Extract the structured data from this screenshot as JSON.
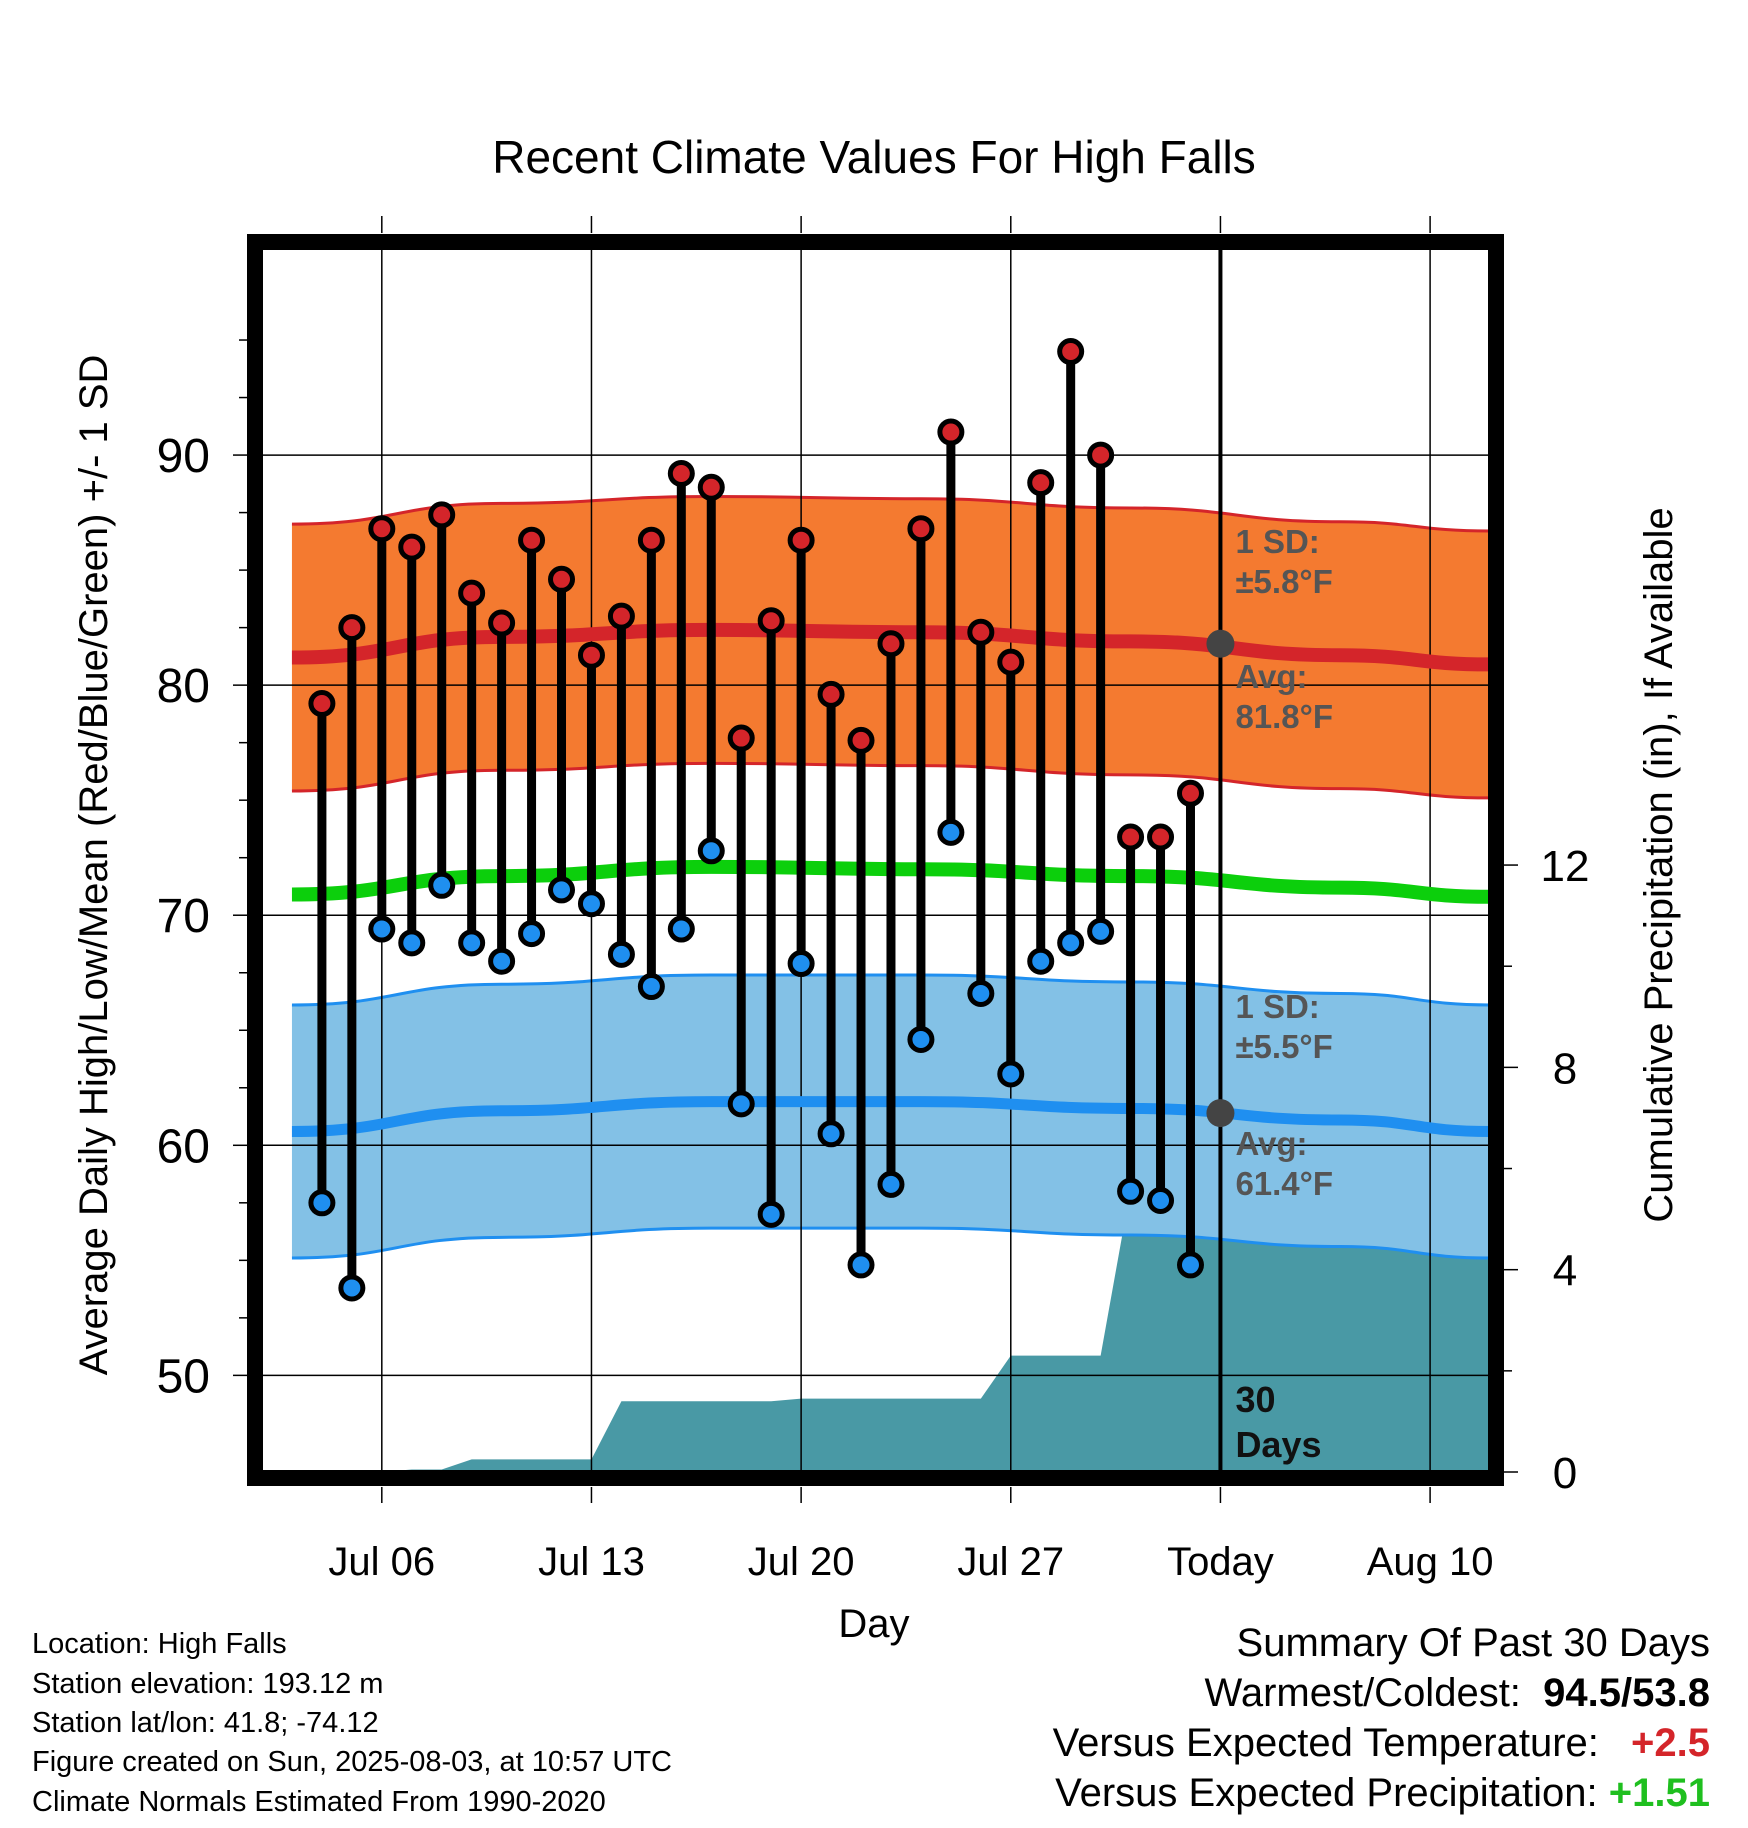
{
  "chart_data": {
    "type": "line",
    "title": "Recent Climate Values For High Falls",
    "xlabel": "Day",
    "ylabel": "Average Daily High/Low/Mean (Red/Blue/Green) +/- 1 SD",
    "y2label": "Cumulative Precipitation (in), If Available",
    "ylim": [
      45.8,
      99
    ],
    "y2lim": [
      0,
      24.2
    ],
    "yticks": [
      50,
      60,
      70,
      80,
      90
    ],
    "y2ticks": [
      0,
      4,
      8,
      12
    ],
    "x_range": [
      "Jul 02",
      "Aug 12"
    ],
    "x_ticks": [
      {
        "date": "2025-07-06",
        "label": "Jul 06"
      },
      {
        "date": "2025-07-13",
        "label": "Jul 13"
      },
      {
        "date": "2025-07-20",
        "label": "Jul 20"
      },
      {
        "date": "2025-07-27",
        "label": "Jul 27"
      },
      {
        "date": "2025-08-03",
        "label": "Today"
      },
      {
        "date": "2025-08-10",
        "label": "Aug 10"
      }
    ],
    "grid": true,
    "today_marker": {
      "date": "2025-08-03",
      "label_line1": "30",
      "label_line2": "Days"
    },
    "days": [
      "2025-07-04",
      "2025-07-05",
      "2025-07-06",
      "2025-07-07",
      "2025-07-08",
      "2025-07-09",
      "2025-07-10",
      "2025-07-11",
      "2025-07-12",
      "2025-07-13",
      "2025-07-14",
      "2025-07-15",
      "2025-07-16",
      "2025-07-17",
      "2025-07-18",
      "2025-07-19",
      "2025-07-20",
      "2025-07-21",
      "2025-07-22",
      "2025-07-23",
      "2025-07-24",
      "2025-07-25",
      "2025-07-26",
      "2025-07-27",
      "2025-07-28",
      "2025-07-29",
      "2025-07-30",
      "2025-07-31",
      "2025-08-01",
      "2025-08-02"
    ],
    "daily_high": [
      79.2,
      82.5,
      86.8,
      86.0,
      87.4,
      84.0,
      82.7,
      86.3,
      84.6,
      81.3,
      83.0,
      86.3,
      89.2,
      88.6,
      77.7,
      82.8,
      86.3,
      79.6,
      77.6,
      81.8,
      86.8,
      91.0,
      82.3,
      81.0,
      88.8,
      94.5,
      90.0,
      73.4,
      73.4,
      75.3
    ],
    "daily_low": [
      57.5,
      53.8,
      69.4,
      68.8,
      71.3,
      68.8,
      68.0,
      69.2,
      71.1,
      70.5,
      68.3,
      66.9,
      69.4,
      72.8,
      61.8,
      57.0,
      67.9,
      60.5,
      54.8,
      58.3,
      64.6,
      73.6,
      66.6,
      63.1,
      68.0,
      68.8,
      69.3,
      58.0,
      57.6,
      54.8
    ],
    "normal_high": {
      "dates": [
        "2025-07-03",
        "2025-07-10",
        "2025-07-17",
        "2025-07-24",
        "2025-07-31",
        "2025-08-07",
        "2025-08-12"
      ],
      "avg": [
        81.2,
        82.1,
        82.4,
        82.3,
        81.9,
        81.3,
        80.9
      ],
      "sd": 5.8,
      "avg_label": "Avg:",
      "avg_value": "81.8°F",
      "sd_label": "1 SD:",
      "sd_value": "±5.8°F"
    },
    "normal_low": {
      "dates": [
        "2025-07-03",
        "2025-07-10",
        "2025-07-17",
        "2025-07-24",
        "2025-07-31",
        "2025-08-07",
        "2025-08-12"
      ],
      "avg": [
        60.6,
        61.5,
        61.9,
        61.9,
        61.6,
        61.1,
        60.6
      ],
      "sd": 5.5,
      "avg_label": "Avg:",
      "avg_value": "61.4°F",
      "sd_label": "1 SD:",
      "sd_value": "±5.5°F"
    },
    "normal_mean": {
      "dates": [
        "2025-07-03",
        "2025-07-10",
        "2025-07-17",
        "2025-07-24",
        "2025-07-31",
        "2025-08-07",
        "2025-08-12"
      ],
      "avg": [
        70.9,
        71.7,
        72.1,
        72.0,
        71.7,
        71.2,
        70.8
      ]
    },
    "cumulative_precip": {
      "dates": [
        "2025-07-04",
        "2025-07-05",
        "2025-07-06",
        "2025-07-07",
        "2025-07-08",
        "2025-07-09",
        "2025-07-10",
        "2025-07-11",
        "2025-07-12",
        "2025-07-13",
        "2025-07-14",
        "2025-07-15",
        "2025-07-16",
        "2025-07-17",
        "2025-07-18",
        "2025-07-19",
        "2025-07-20",
        "2025-07-21",
        "2025-07-22",
        "2025-07-23",
        "2025-07-24",
        "2025-07-25",
        "2025-07-26",
        "2025-07-27",
        "2025-07-28",
        "2025-07-29",
        "2025-07-30",
        "2025-07-31",
        "2025-08-01",
        "2025-08-02",
        "2025-08-03",
        "2025-08-12"
      ],
      "values": [
        0.0,
        0.0,
        0.0,
        0.05,
        0.05,
        0.25,
        0.25,
        0.25,
        0.25,
        0.25,
        1.4,
        1.4,
        1.4,
        1.4,
        1.4,
        1.4,
        1.45,
        1.45,
        1.45,
        1.45,
        1.45,
        1.45,
        1.45,
        2.3,
        2.3,
        2.3,
        2.3,
        5.6,
        5.6,
        5.6,
        5.6,
        5.6
      ]
    },
    "colors": {
      "high_band": "#f47a30",
      "high_line": "#d4252a",
      "low_band": "#83c1e6",
      "low_line": "#1f8ff0",
      "mean_line": "#0ccf0c",
      "precip": "#4999a5",
      "high_dot": "#d4252a",
      "low_dot": "#1f8ff0",
      "marker": "#444444",
      "annotation": "#555555"
    }
  },
  "footer": {
    "location": "Location: High Falls",
    "elevation": "Station elevation: 193.12 m",
    "latlon": "Station lat/lon: 41.8; -74.12",
    "created": "Figure created on Sun, 2025-08-03, at 10:57 UTC",
    "normals": "Climate Normals Estimated From 1990-2020"
  },
  "summary": {
    "title": "Summary Of Past 30 Days",
    "warm_cold_label": "Warmest/Coldest:",
    "warmest": "94.5",
    "slash": "/",
    "coldest": "53.8",
    "temp_label": "Versus Expected Temperature:",
    "temp_value": "+2.5",
    "temp_color": "#d4252a",
    "precip_label": "Versus Expected Precipitation:",
    "precip_value": "+1.51",
    "precip_color": "#1fbf1f"
  }
}
